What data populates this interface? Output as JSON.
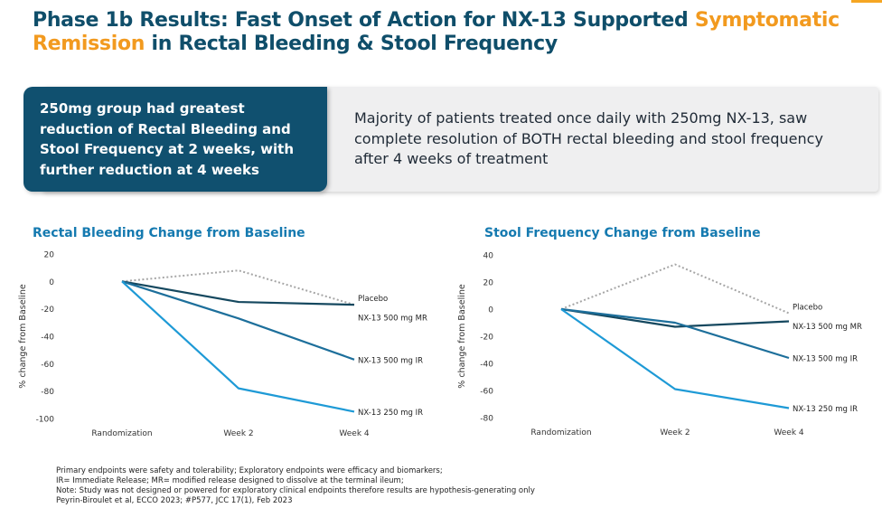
{
  "header": {
    "title_part1": "Phase 1b Results: Fast Onset of Action for NX-13 Supported ",
    "title_highlight": "Symptomatic Remission",
    "title_part2": " in Rectal Bleeding & Stool Frequency"
  },
  "callout": {
    "dark_text": "250mg group had greatest reduction of Rectal Bleeding and Stool Frequency at 2 weeks, with further reduction at 4 weeks",
    "light_text": "Majority of patients treated once daily with 250mg NX-13, saw complete resolution of BOTH rectal bleeding and stool frequency after 4 weeks of treatment"
  },
  "colors": {
    "title": "#0f4e6a",
    "highlight": "#f29a1f",
    "callout_dark": "#10506f",
    "placebo": "#a6a6a6",
    "mr500": "#15485f",
    "ir500": "#1d6f9b",
    "ir250": "#1e9ad6",
    "chart_title": "#157ab0"
  },
  "chart_data": [
    {
      "type": "line",
      "title": "Rectal Bleeding Change from Baseline",
      "ylabel": "% change from Baseline",
      "xlabel": "",
      "categories": [
        "Randomization",
        "Week 2",
        "Week 4"
      ],
      "ylim": [
        -100,
        20
      ],
      "yticks": [
        "20",
        "0",
        "-20",
        "-40",
        "-60",
        "-80",
        "-100"
      ],
      "grid": false,
      "series": [
        {
          "name": "Placebo",
          "values": [
            0,
            8,
            -17
          ],
          "style": "dotted"
        },
        {
          "name": "NX-13 500 mg MR",
          "values": [
            0,
            -15,
            -17
          ],
          "style": "solid"
        },
        {
          "name": "NX-13 500 mg IR",
          "values": [
            0,
            -27,
            -57
          ],
          "style": "solid"
        },
        {
          "name": "NX-13 250 mg IR",
          "values": [
            0,
            -78,
            -95
          ],
          "style": "solid"
        }
      ]
    },
    {
      "type": "line",
      "title": "Stool Frequency Change from Baseline",
      "ylabel": "% change from Baseline",
      "xlabel": "",
      "categories": [
        "Randomization",
        "Week 2",
        "Week 4"
      ],
      "ylim": [
        -80,
        40
      ],
      "yticks": [
        "40",
        "20",
        "0",
        "-20",
        "-40",
        "-60",
        "-80"
      ],
      "grid": false,
      "series": [
        {
          "name": "Placebo",
          "values": [
            0,
            33,
            -3
          ],
          "style": "dotted"
        },
        {
          "name": "NX-13 500 mg MR",
          "values": [
            0,
            -13,
            -9
          ],
          "style": "solid"
        },
        {
          "name": "NX-13 500 mg IR",
          "values": [
            0,
            -10,
            -36
          ],
          "style": "solid"
        },
        {
          "name": "NX-13 250 mg IR",
          "values": [
            0,
            -59,
            -73
          ],
          "style": "solid"
        }
      ]
    }
  ],
  "footnotes": [
    "Primary endpoints were safety and tolerability; Exploratory endpoints were efficacy and biomarkers;",
    "IR= Immediate Release; MR= modified release designed to dissolve at the terminal ileum;",
    "Note: Study was not designed or powered for exploratory clinical endpoints therefore results are hypothesis-generating only",
    "Peyrin-Biroulet et al, ECCO 2023; #P577, JCC 17(1), Feb 2023"
  ]
}
